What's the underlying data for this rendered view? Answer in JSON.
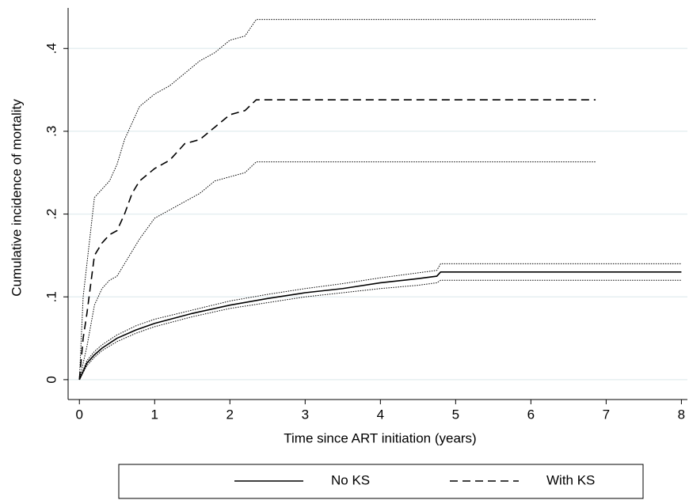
{
  "chart_data": {
    "type": "line",
    "xlabel": "Time since ART initiation (years)",
    "ylabel": "Cumulative incidence of mortality",
    "xlim": [
      -0.15,
      8.08
    ],
    "ylim": [
      -0.024,
      0.449
    ],
    "xticks": [
      0,
      1,
      2,
      3,
      4,
      5,
      6,
      7,
      8
    ],
    "yticks": [
      0,
      {
        "value": 0.1,
        "label": ".1"
      },
      {
        "value": 0.2,
        "label": ".2"
      },
      {
        "value": 0.3,
        "label": ".3"
      },
      {
        "value": 0.4,
        "label": ".4"
      }
    ],
    "grid": true,
    "grid_color": "#e6eff1",
    "legend": "bottom",
    "series": [
      {
        "name": "No KS",
        "color": "#000000",
        "dash": "none",
        "x": [
          0,
          0.1,
          0.2,
          0.3,
          0.5,
          0.75,
          1,
          1.5,
          2,
          2.5,
          3,
          3.5,
          4,
          4.5,
          4.75,
          4.8,
          8
        ],
        "values": [
          0,
          0.02,
          0.03,
          0.038,
          0.05,
          0.06,
          0.068,
          0.08,
          0.09,
          0.098,
          0.105,
          0.11,
          0.117,
          0.122,
          0.125,
          0.13,
          0.13
        ],
        "lower": [
          0,
          0.017,
          0.027,
          0.035,
          0.046,
          0.056,
          0.064,
          0.076,
          0.086,
          0.093,
          0.1,
          0.105,
          0.11,
          0.114,
          0.117,
          0.12,
          0.12
        ],
        "upper": [
          0,
          0.023,
          0.034,
          0.042,
          0.054,
          0.065,
          0.073,
          0.084,
          0.095,
          0.103,
          0.11,
          0.116,
          0.123,
          0.129,
          0.132,
          0.14,
          0.14
        ]
      },
      {
        "name": "With KS",
        "color": "#000000",
        "dash": "10 6",
        "x": [
          0,
          0.05,
          0.1,
          0.2,
          0.3,
          0.4,
          0.5,
          0.6,
          0.7,
          0.8,
          1.0,
          1.2,
          1.4,
          1.6,
          1.8,
          2.0,
          2.2,
          2.35,
          6.86
        ],
        "values": [
          0,
          0.05,
          0.08,
          0.15,
          0.165,
          0.175,
          0.18,
          0.2,
          0.225,
          0.24,
          0.255,
          0.265,
          0.285,
          0.29,
          0.305,
          0.32,
          0.325,
          0.338,
          0.338
        ],
        "lower": [
          0,
          0.02,
          0.04,
          0.09,
          0.11,
          0.12,
          0.125,
          0.14,
          0.155,
          0.17,
          0.195,
          0.205,
          0.215,
          0.225,
          0.24,
          0.245,
          0.25,
          0.263,
          0.263
        ],
        "upper": [
          0,
          0.1,
          0.14,
          0.22,
          0.23,
          0.24,
          0.26,
          0.29,
          0.31,
          0.33,
          0.345,
          0.355,
          0.37,
          0.385,
          0.395,
          0.41,
          0.415,
          0.435,
          0.435
        ]
      }
    ]
  }
}
